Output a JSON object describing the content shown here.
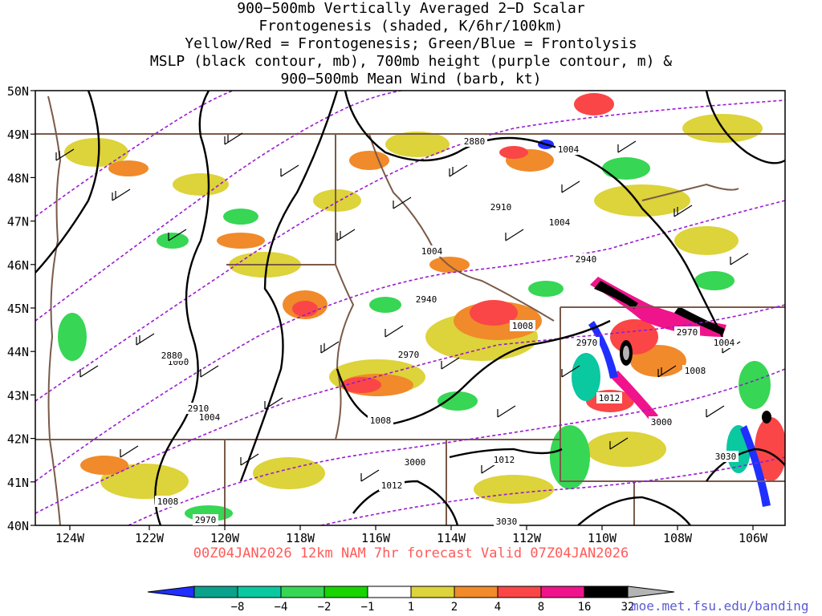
{
  "title_lines": [
    "900−500mb Vertically Averaged 2−D Scalar",
    "Frontogenesis (shaded, K/6hr/100km)",
    "Yellow/Red = Frontogenesis;  Green/Blue = Frontolysis",
    "MSLP (black contour, mb), 700mb height (purple contour, m) &",
    "900−500mb Mean Wind (barb, kt)"
  ],
  "map": {
    "lat_labels": [
      "50N",
      "49N",
      "48N",
      "47N",
      "46N",
      "45N",
      "44N",
      "43N",
      "42N",
      "41N",
      "40N"
    ],
    "lon_labels": [
      "124W",
      "122W",
      "120W",
      "118W",
      "116W",
      "114W",
      "112W",
      "110W",
      "108W",
      "106W"
    ],
    "pressure_labels": [
      "1004",
      "1004",
      "1004",
      "1000",
      "1004",
      "1008",
      "1008",
      "1012",
      "1012",
      "1008",
      "1004",
      "1008",
      "1012"
    ],
    "height_labels": [
      "2880",
      "2910",
      "2940",
      "2940",
      "2970",
      "2970",
      "2970",
      "3000",
      "3000",
      "3030",
      "3030",
      "2880",
      "2910",
      "2970"
    ]
  },
  "legend": {
    "labels": [
      "−8",
      "−4",
      "−2",
      "−1",
      "1",
      "2",
      "4",
      "8",
      "16",
      "32"
    ],
    "colors": [
      "#1f2fff",
      "#0aa28c",
      "#0ac8a0",
      "#37d655",
      "#18d400",
      "#ffffff",
      "#ddd33a",
      "#f08a2a",
      "#fa4646",
      "#f0148c",
      "#000000",
      "#b4b4b4"
    ]
  },
  "subtitle": "00Z04JAN2026  12km NAM 7hr forecast Valid 07Z04JAN2026",
  "credit": "moe.met.fsu.edu/banding",
  "colors": {
    "pressure_contour": "#000000",
    "height_contour": "#9a1ad2",
    "borders": "#7a5a48",
    "subtitle": "#ff5a5a",
    "credit": "#5b5bd6"
  }
}
